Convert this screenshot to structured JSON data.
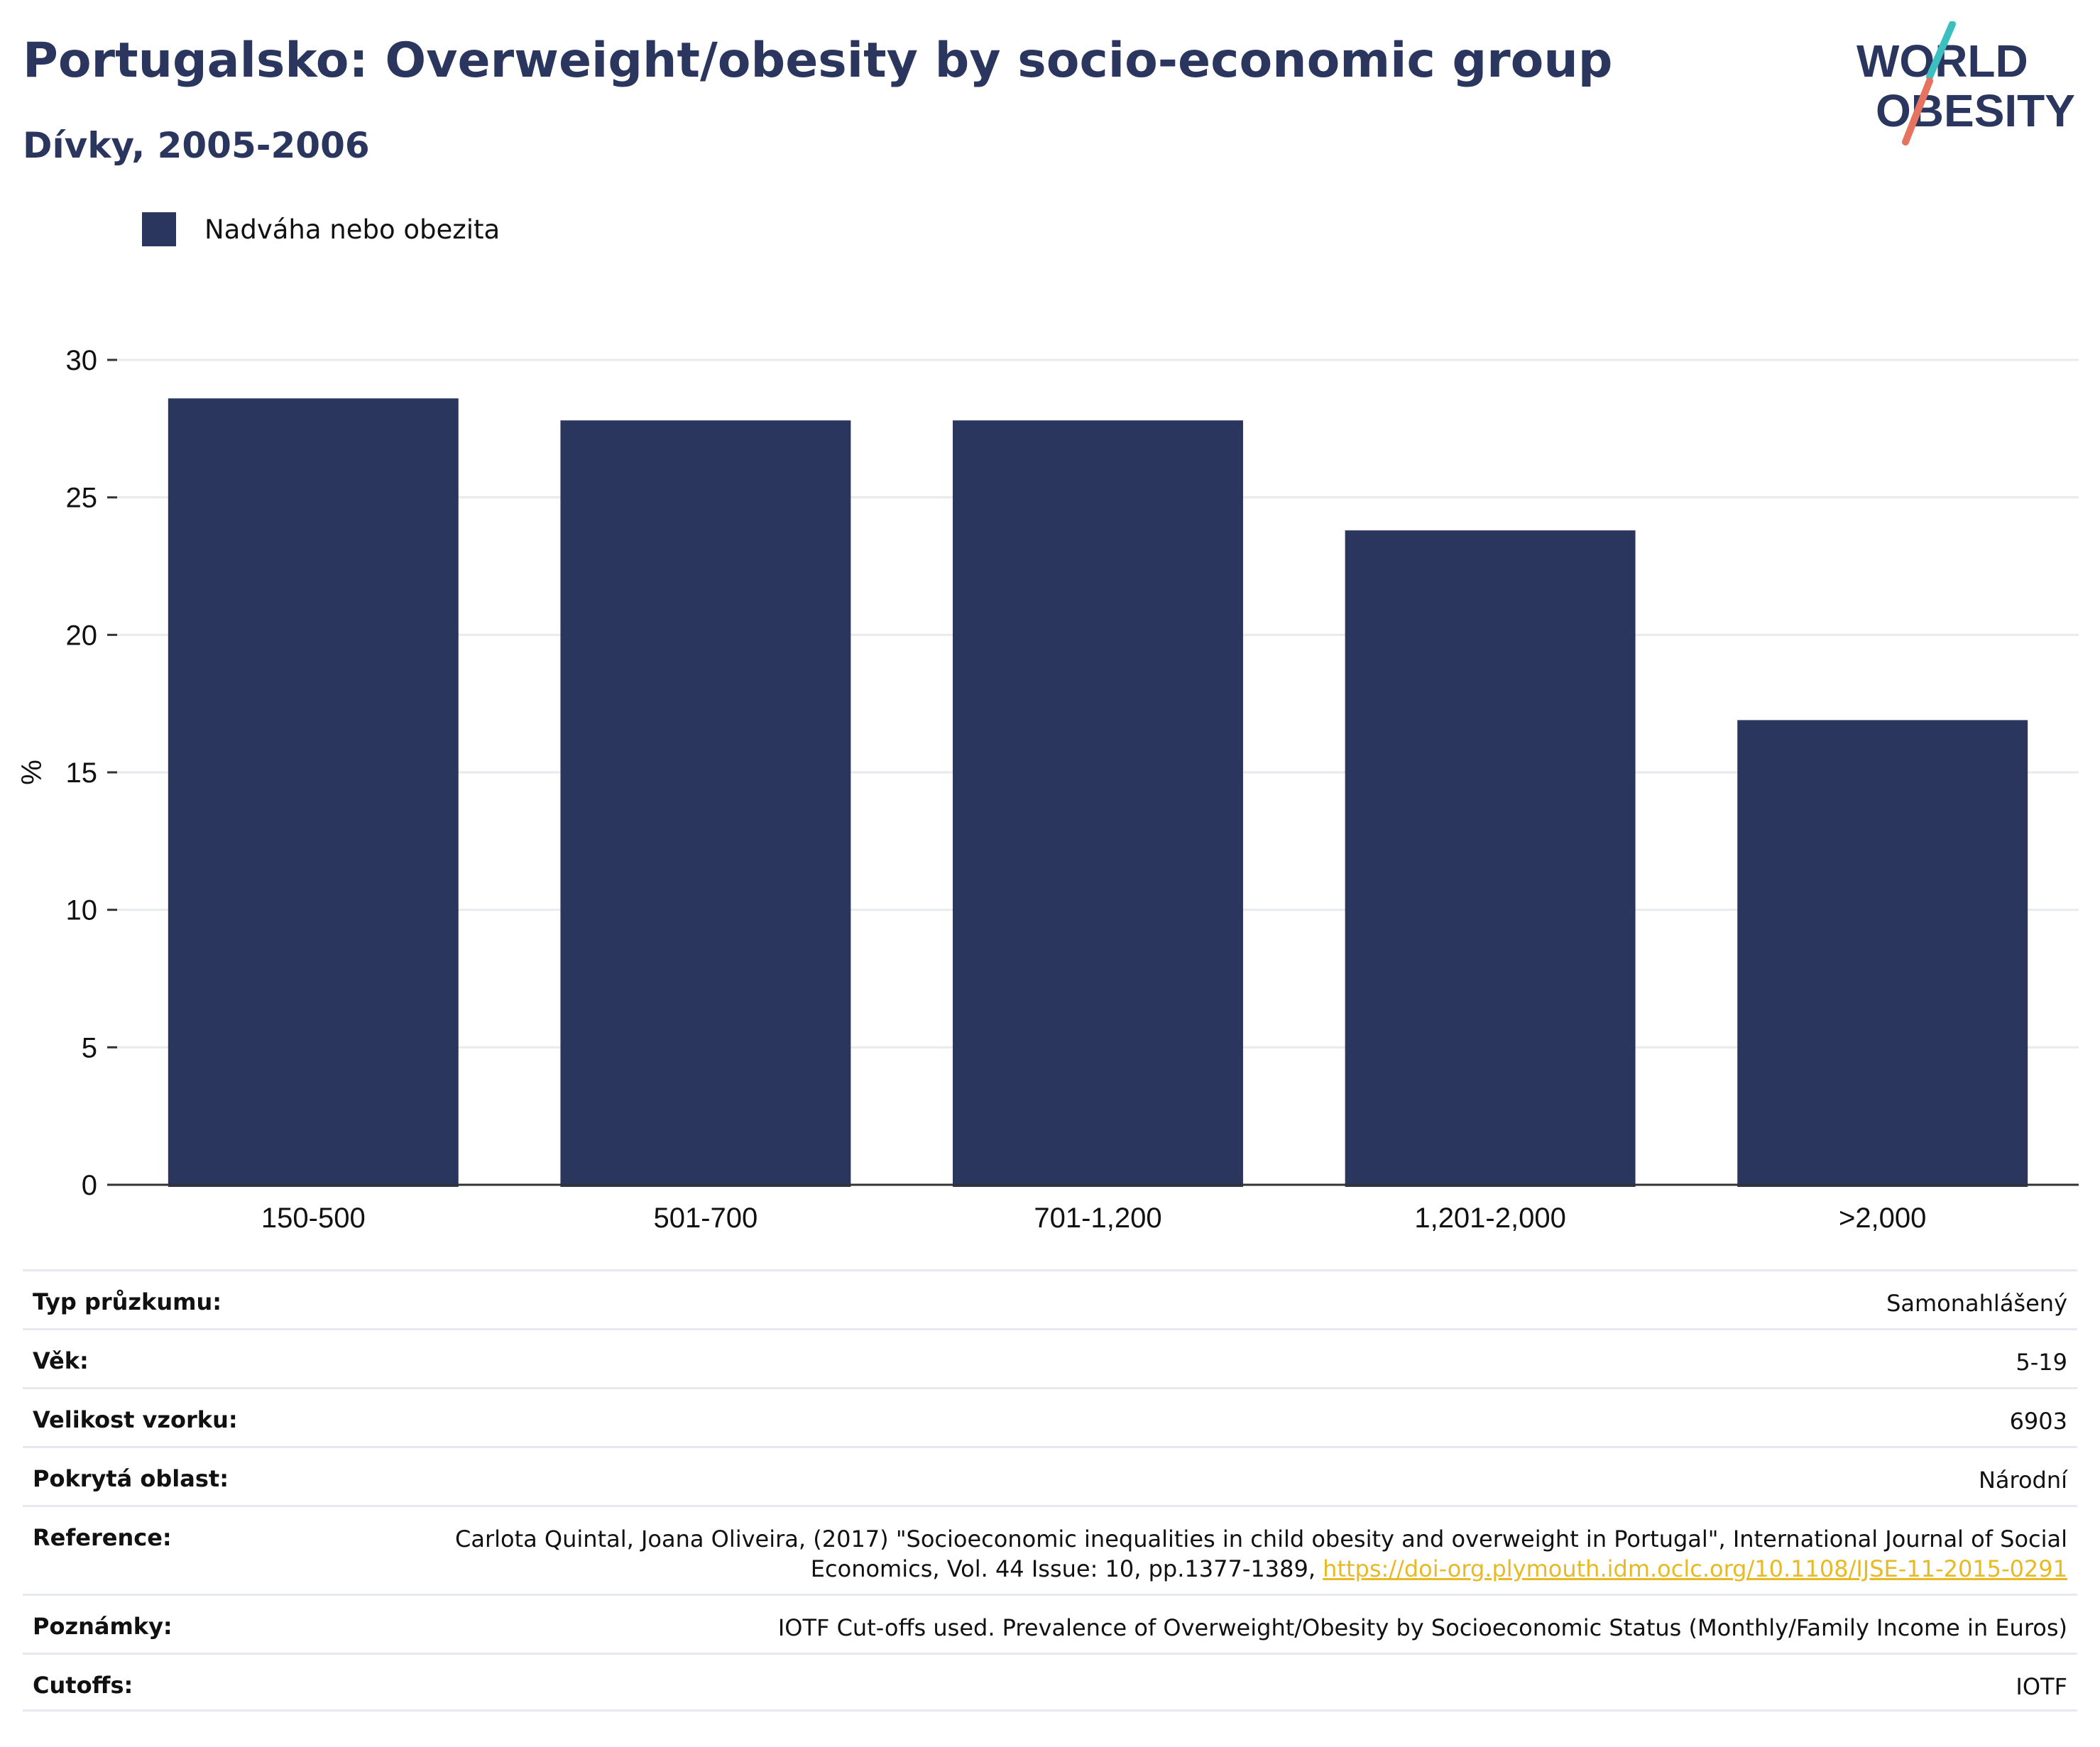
{
  "header": {
    "title": "Portugalsko: Overweight/obesity by socio-economic group",
    "subtitle": "Dívky, 2005-2006"
  },
  "logo": {
    "line1": "WORLD",
    "line2": "OBESITY",
    "colors": {
      "text": "#2b365f",
      "slash_top": "#3bbfc0",
      "slash_bottom": "#e5735f"
    }
  },
  "legend": {
    "label": "Nadváha nebo obezita",
    "color": "#2b365f"
  },
  "chart_data": {
    "type": "bar",
    "categories": [
      "150-500",
      "501-700",
      "701-1,200",
      "1,201-2,000",
      ">2,000"
    ],
    "series": [
      {
        "name": "Nadváha nebo obezita",
        "values": [
          28.6,
          27.8,
          27.8,
          23.8,
          16.9
        ],
        "color": "#2b365f"
      }
    ],
    "ylabel": "%",
    "ylim": [
      0,
      30
    ],
    "yticks": [
      0,
      5,
      10,
      15,
      20,
      25,
      30
    ],
    "grid": true,
    "legend_position": "top-left"
  },
  "meta": {
    "survey_type": {
      "label": "Typ průzkumu:",
      "value": "Samonahlášený"
    },
    "age": {
      "label": "Věk:",
      "value": "5-19"
    },
    "sample_size": {
      "label": "Velikost vzorku:",
      "value": "6903"
    },
    "coverage": {
      "label": "Pokrytá oblast:",
      "value": "Národní"
    },
    "reference": {
      "label": "Reference:",
      "value": "Carlota Quintal, Joana Oliveira, (2017) \"Socioeconomic inequalities in child obesity and overweight in Portugal\", International Journal of Social Economics, Vol. 44 Issue: 10, pp.1377-1389,",
      "link": "https://doi-org.plymouth.idm.oclc.org/10.1108/IJSE-11-2015-0291",
      "link_color": "#e8b923"
    },
    "notes": {
      "label": "Poznámky:",
      "value": "IOTF Cut-offs used. Prevalence of Overweight/Obesity by Socioeconomic Status (Monthly/Family Income in Euros)"
    },
    "cutoffs": {
      "label": "Cutoffs:",
      "value": "IOTF"
    }
  }
}
